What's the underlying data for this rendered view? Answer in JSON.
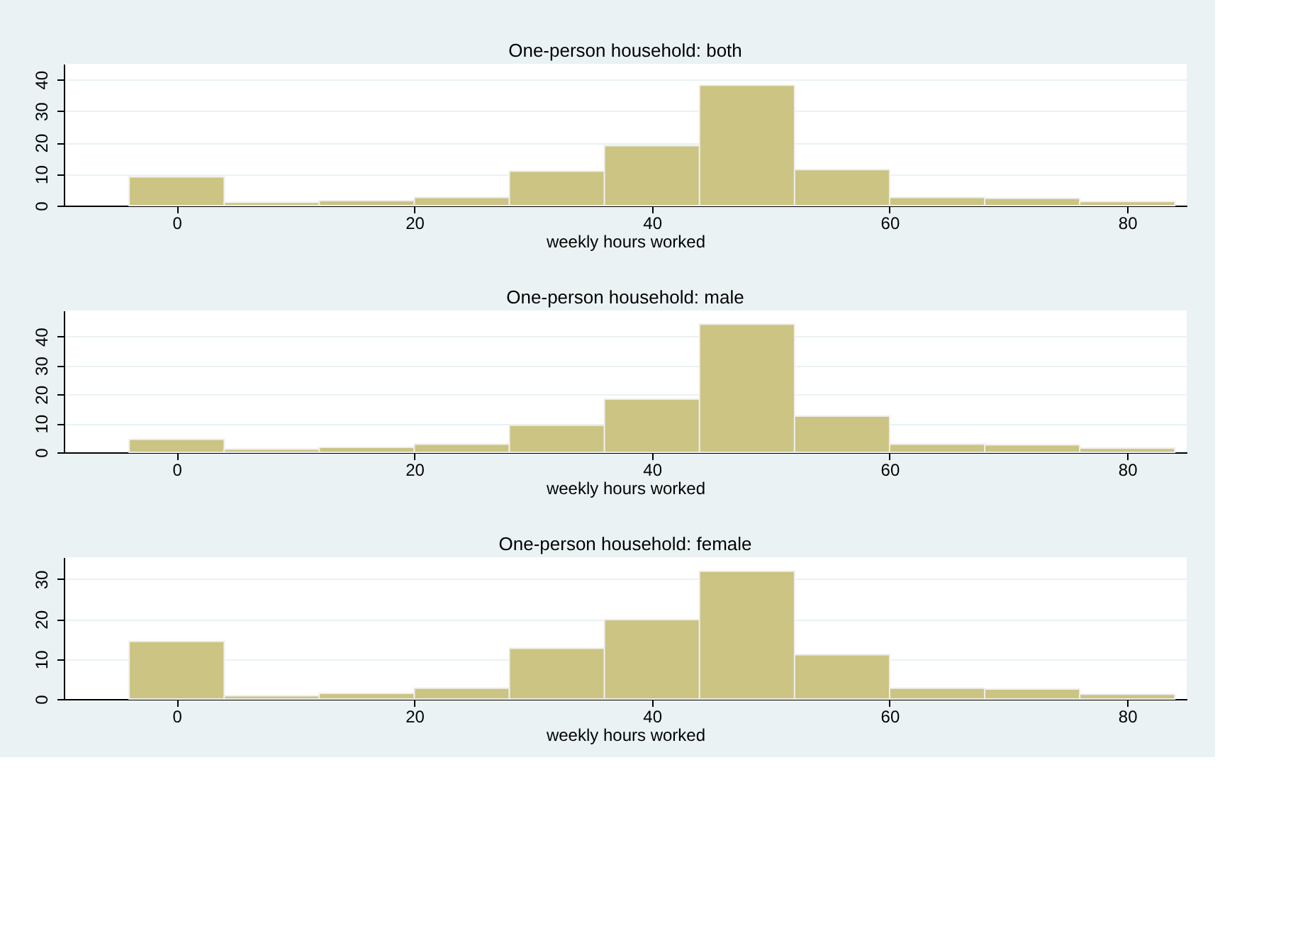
{
  "chart_data": [
    {
      "type": "histogram",
      "title": "One-person household: both",
      "xlabel": "weekly hours worked",
      "bins": [
        -4,
        4,
        12,
        20,
        28,
        36,
        44,
        52,
        60,
        68,
        76,
        84
      ],
      "values": [
        9.1,
        1.0,
        1.6,
        2.6,
        10.9,
        19.0,
        38.2,
        11.4,
        2.6,
        2.3,
        1.3
      ],
      "color": "#cbc482",
      "xlim": [
        -9.5,
        85
      ],
      "xticks": [
        0,
        20,
        40,
        60,
        80
      ],
      "ylim": [
        0,
        45
      ],
      "yticks": [
        0,
        10,
        20,
        30,
        40
      ],
      "grid": "y"
    },
    {
      "type": "histogram",
      "title": "One-person household: male",
      "xlabel": "weekly hours worked",
      "bins": [
        -4,
        4,
        12,
        20,
        28,
        36,
        44,
        52,
        60,
        68,
        76,
        84
      ],
      "values": [
        4.5,
        1.1,
        1.7,
        2.8,
        9.4,
        18.4,
        44.3,
        12.5,
        2.8,
        2.6,
        1.4
      ],
      "color": "#cbc482",
      "xlim": [
        -9.5,
        85
      ],
      "xticks": [
        0,
        20,
        40,
        60,
        80
      ],
      "ylim": [
        0,
        49
      ],
      "yticks": [
        0,
        10,
        20,
        30,
        40
      ],
      "grid": "y"
    },
    {
      "type": "histogram",
      "title": "One-person household: female",
      "xlabel": "weekly hours worked",
      "bins": [
        -4,
        4,
        12,
        20,
        28,
        36,
        44,
        52,
        60,
        68,
        76,
        84
      ],
      "values": [
        14.4,
        0.8,
        1.4,
        2.7,
        12.7,
        19.9,
        32.0,
        11.1,
        2.7,
        2.5,
        1.2
      ],
      "color": "#cbc482",
      "xlim": [
        -9.5,
        85
      ],
      "xticks": [
        0,
        20,
        40,
        60,
        80
      ],
      "ylim": [
        0,
        35.5
      ],
      "yticks": [
        0,
        10,
        20,
        30
      ],
      "grid": "y"
    }
  ]
}
